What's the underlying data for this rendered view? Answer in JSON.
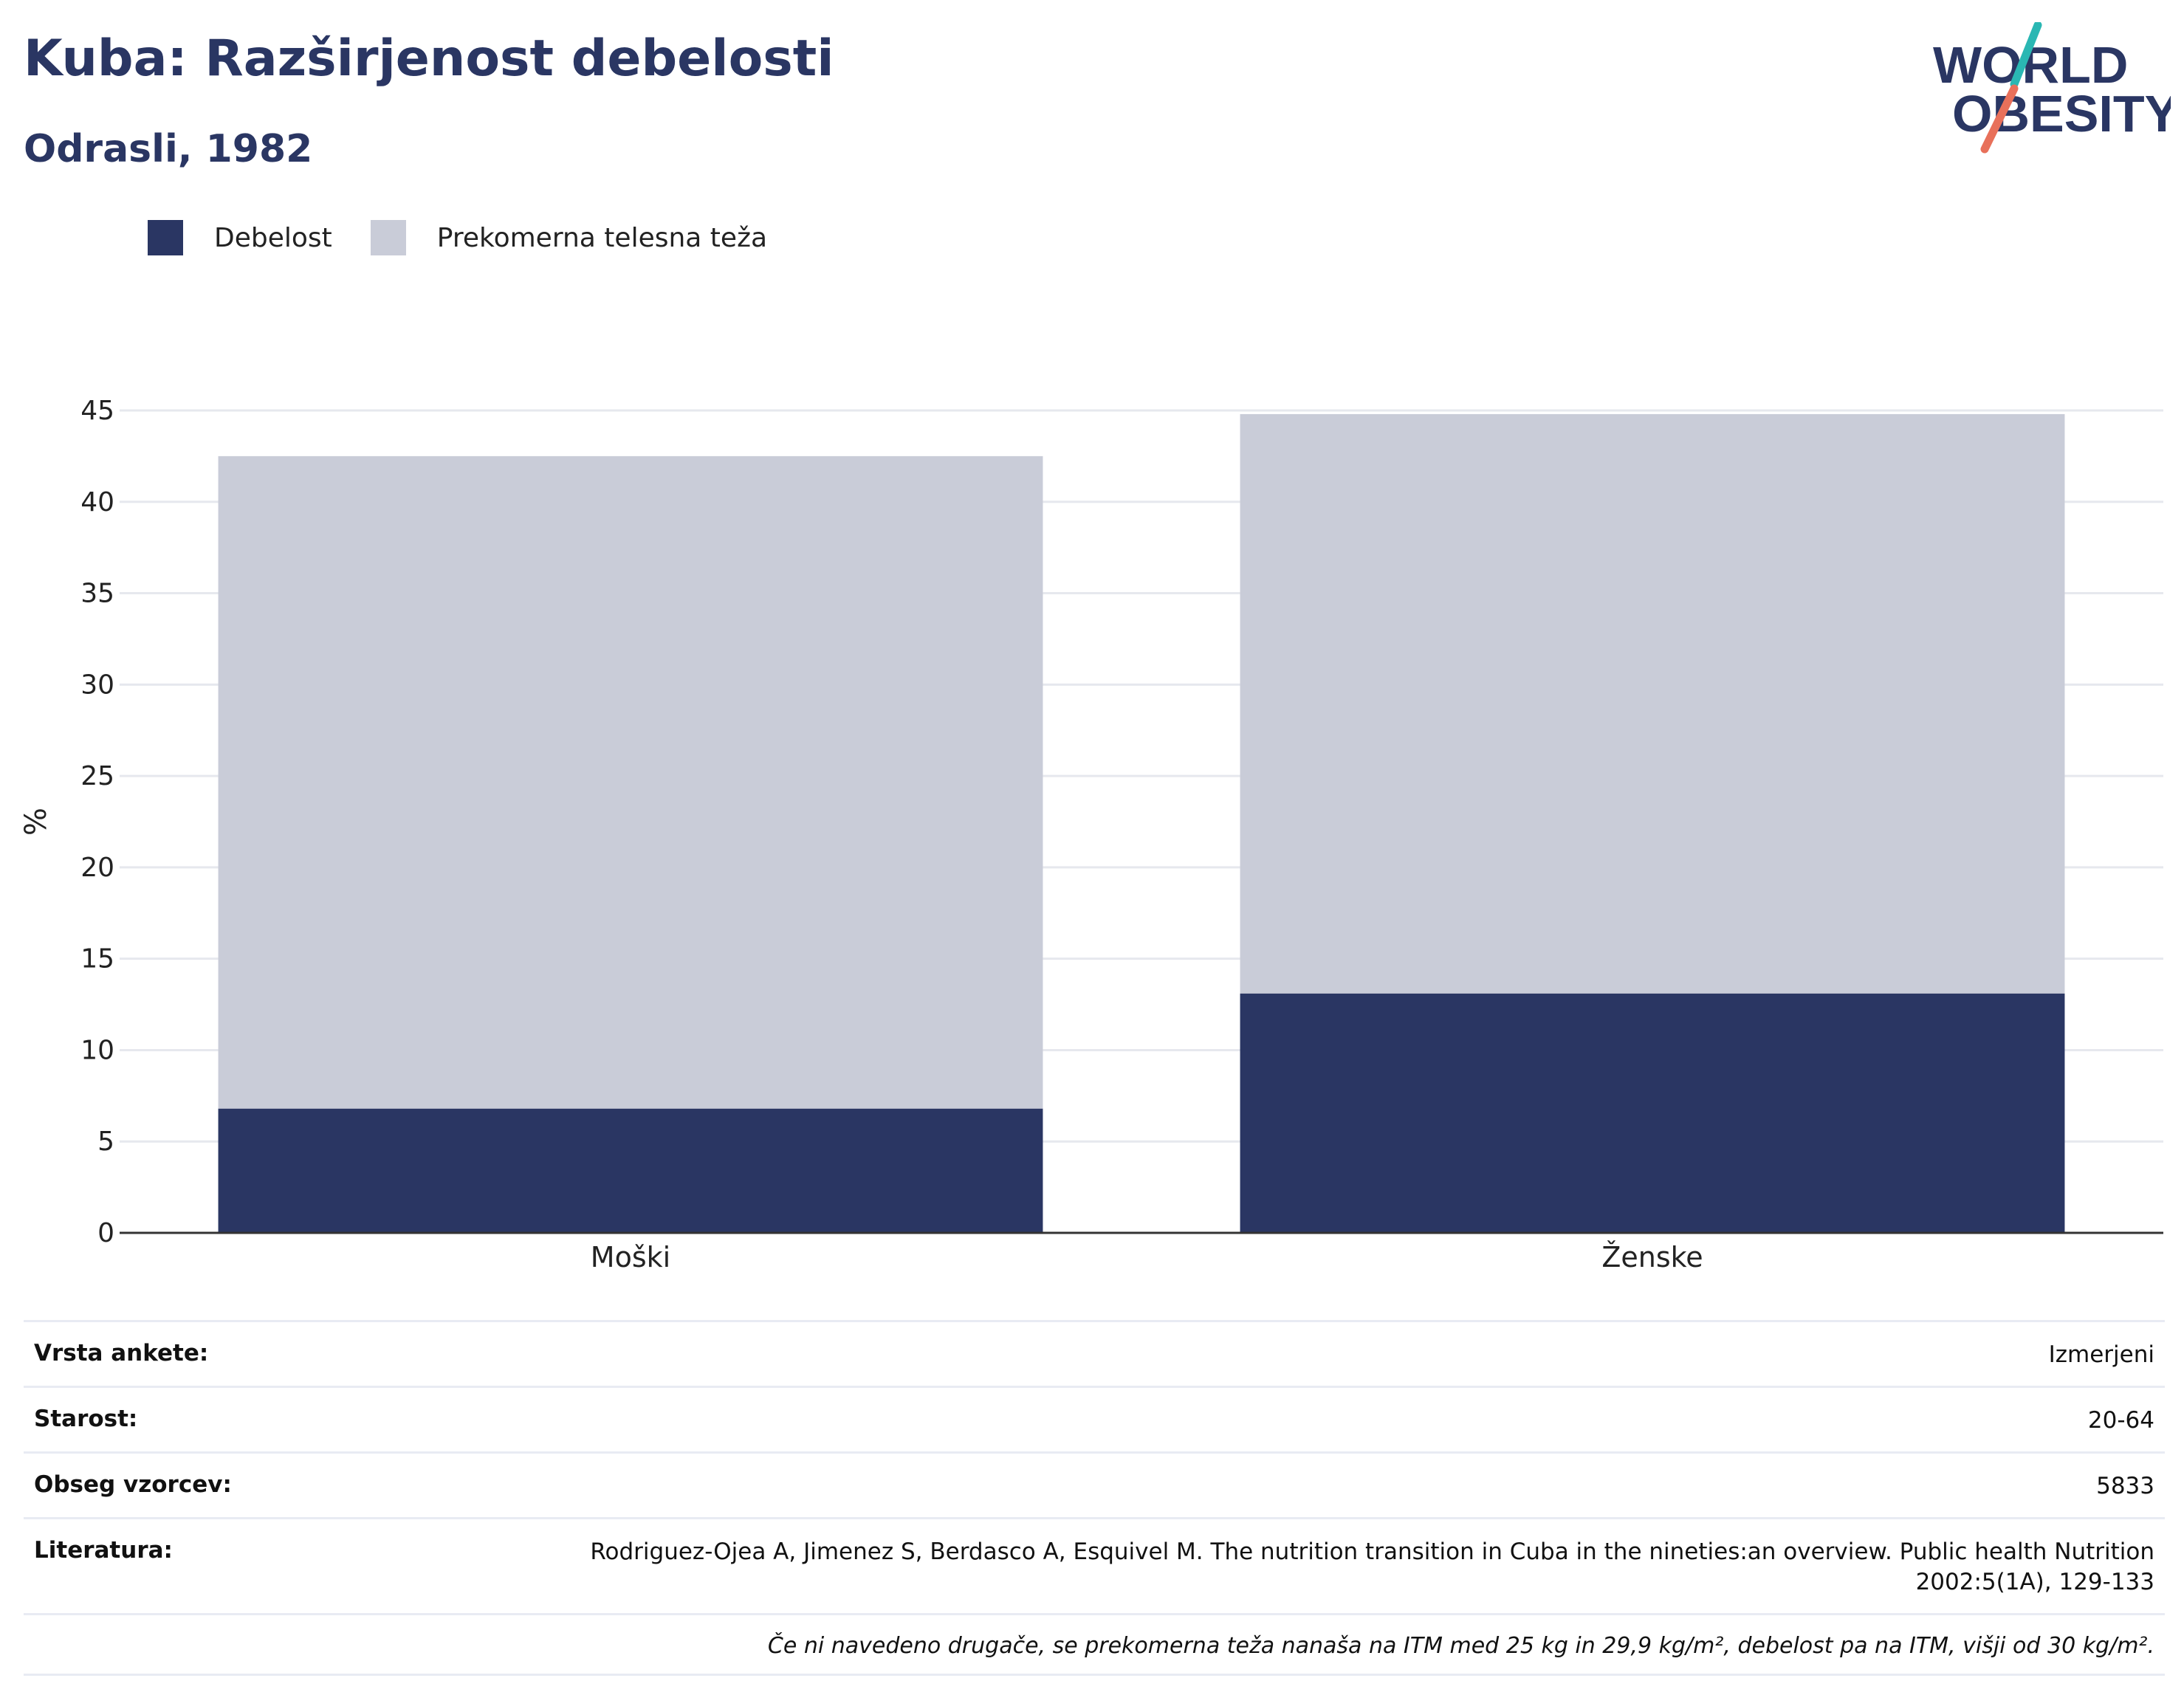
{
  "title": "Kuba: Razširjenost debelosti",
  "subtitle": "Odrasli, 1982",
  "logo": {
    "line1": "WORLD",
    "line2": "OBESITY"
  },
  "legend": [
    {
      "label": "Debelost",
      "color": "#2a3663"
    },
    {
      "label": "Prekomerna telesna teža",
      "color": "#c9ccd8"
    }
  ],
  "chart_data": {
    "type": "bar",
    "stacked": true,
    "categories": [
      "Moški",
      "Ženske"
    ],
    "series": [
      {
        "name": "Debelost",
        "color": "#2a3663",
        "values": [
          6.8,
          13.1
        ]
      },
      {
        "name": "Prekomerna telesna teža",
        "color": "#c9ccd8",
        "values": [
          35.7,
          31.7
        ]
      }
    ],
    "ylabel": "%",
    "ylim": [
      0,
      45
    ],
    "yticks": [
      0,
      5,
      10,
      15,
      20,
      25,
      30,
      35,
      40,
      45
    ],
    "grid": true,
    "legend_position": "top-left"
  },
  "info": {
    "rows": [
      {
        "label": "Vrsta ankete:",
        "value": "Izmerjeni"
      },
      {
        "label": "Starost:",
        "value": "20-64"
      },
      {
        "label": "Obseg vzorcev:",
        "value": "5833"
      },
      {
        "label": "Literatura:",
        "value": "Rodriguez-Ojea A, Jimenez S, Berdasco A, Esquivel M. The nutrition transition in Cuba in the nineties:an overview. Public health Nutrition 2002:5(1A), 129-133"
      }
    ],
    "note": "Če ni navedeno drugače, se prekomerna teža nanaša na ITM med 25 kg in 29,9 kg/m², debelost pa na ITM, višji od 30 kg/m²."
  }
}
